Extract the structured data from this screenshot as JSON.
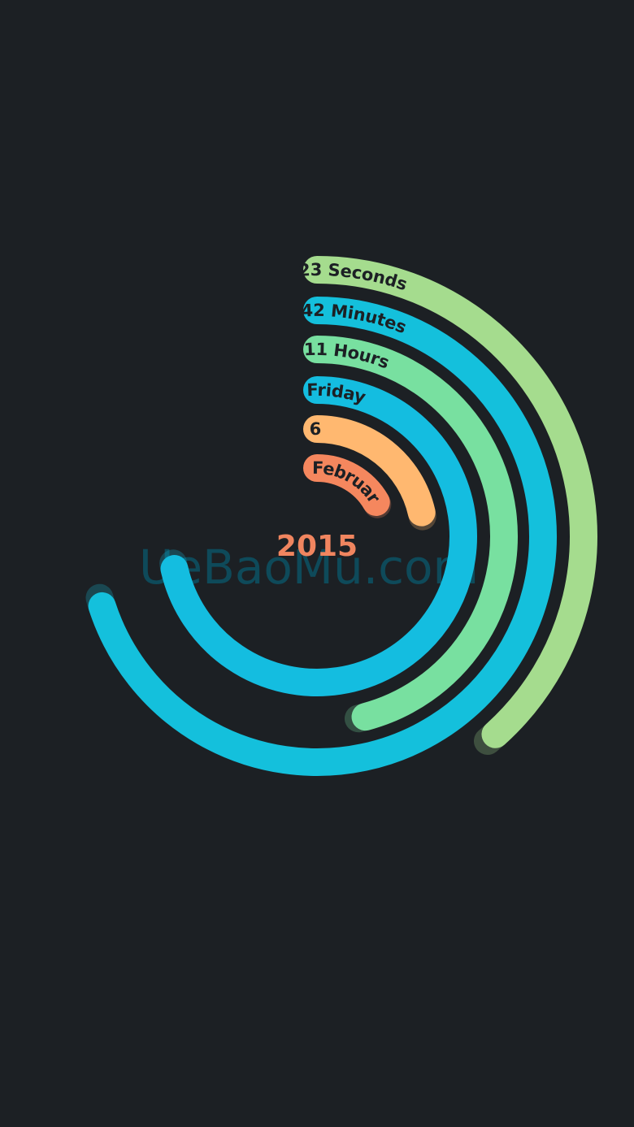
{
  "clock": {
    "year": "2015",
    "year_color": "#f0855f",
    "background": "#1c2024",
    "label_color": "#1c2024",
    "rings": [
      {
        "id": "seconds",
        "label": "23 Seconds",
        "value": 23,
        "max": 60,
        "color": "#a5dc8e"
      },
      {
        "id": "minutes",
        "label": "42 Minutes",
        "value": 42,
        "max": 60,
        "color": "#14c0dc"
      },
      {
        "id": "hours",
        "label": "11 Hours",
        "value": 11,
        "max": 24,
        "color": "#78e0a0"
      },
      {
        "id": "weekday",
        "label": "Friday",
        "value": 5,
        "max": 7,
        "color": "#14bde0"
      },
      {
        "id": "day",
        "label": "6",
        "value": 6,
        "max": 28,
        "color": "#ffb870"
      },
      {
        "id": "month",
        "label": "February",
        "value": 2,
        "max": 12,
        "color": "#f5875e"
      }
    ]
  },
  "watermark": {
    "text": "UeBaoMu.com",
    "color": "#0e4a5a"
  }
}
